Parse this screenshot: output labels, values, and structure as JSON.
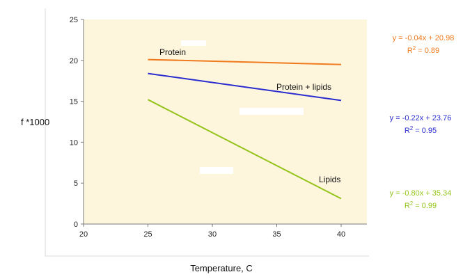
{
  "chart_data": {
    "type": "line",
    "title": "",
    "xlabel": "Temperature, C",
    "ylabel": "f *1000",
    "xlim": [
      20,
      42
    ],
    "ylim": [
      0,
      25
    ],
    "x_ticks": [
      20,
      25,
      30,
      35,
      40
    ],
    "y_ticks": [
      0,
      5,
      10,
      15,
      20,
      25
    ],
    "grid": false,
    "plot_background": "#fdf5dc",
    "series": [
      {
        "name": "Protein",
        "color": "#f07a1e",
        "x": [
          25,
          40
        ],
        "y": [
          20.1,
          19.5
        ],
        "equation": "y = -0.04x + 20.98",
        "r2_label": "R",
        "r2_exp": "2",
        "r2_value": " = 0.89"
      },
      {
        "name": "Protein + lipids",
        "color": "#2a2ccf",
        "x": [
          25,
          40
        ],
        "y": [
          18.4,
          15.1
        ],
        "equation": "y = -0.22x + 23.76",
        "r2_label": "R",
        "r2_exp": "2",
        "r2_value": " = 0.95"
      },
      {
        "name": "Lipids",
        "color": "#94c41a",
        "x": [
          25,
          40
        ],
        "y": [
          15.2,
          3.1
        ],
        "equation": "y = -0.80x + 35.34",
        "r2_label": "R",
        "r2_exp": "2",
        "r2_value": " = 0.99"
      }
    ]
  }
}
